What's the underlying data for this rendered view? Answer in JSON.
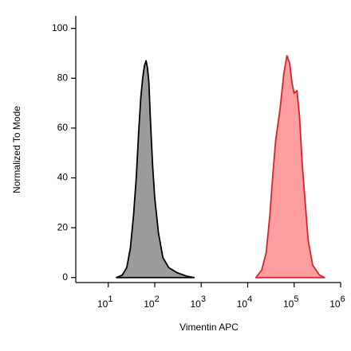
{
  "chart_data": {
    "type": "area",
    "ylabel": "Normalized To Mode",
    "xlabel": "Vimentin APC",
    "xscale": "log",
    "xlim": [
      2,
      1000000
    ],
    "ylim": [
      -2,
      105
    ],
    "xticks": [
      {
        "value": 10,
        "label": "10",
        "exponent": "1"
      },
      {
        "value": 100,
        "label": "10",
        "exponent": "2"
      },
      {
        "value": 1000,
        "label": "10",
        "exponent": "3"
      },
      {
        "value": 10000,
        "label": "10",
        "exponent": "4"
      },
      {
        "value": 100000,
        "label": "10",
        "exponent": "5"
      },
      {
        "value": 1000000,
        "label": "10",
        "exponent": "6"
      }
    ],
    "yticks": [
      0,
      20,
      40,
      60,
      80,
      100
    ],
    "series": [
      {
        "color": "#9b9b9b",
        "edgecolor": "#000000",
        "x": [
          15,
          20,
          25,
          30,
          35,
          40,
          45,
          50,
          55,
          60,
          65,
          70,
          75,
          80,
          90,
          100,
          120,
          150,
          200,
          300,
          500,
          700
        ],
        "values": [
          0,
          1,
          4,
          12,
          25,
          40,
          58,
          72,
          80,
          85,
          87,
          84,
          78,
          65,
          45,
          32,
          18,
          8,
          4,
          2,
          0.5,
          0
        ]
      },
      {
        "color": "#ff9e9e",
        "edgecolor": "#d4242c",
        "x": [
          15000,
          20000,
          25000,
          30000,
          35000,
          40000,
          50000,
          60000,
          70000,
          80000,
          90000,
          100000,
          115000,
          130000,
          150000,
          200000,
          250000,
          350000,
          450000
        ],
        "values": [
          0,
          3,
          10,
          25,
          42,
          55,
          68,
          82,
          89,
          86,
          78,
          74,
          75,
          65,
          45,
          15,
          5,
          1,
          0
        ]
      }
    ]
  }
}
